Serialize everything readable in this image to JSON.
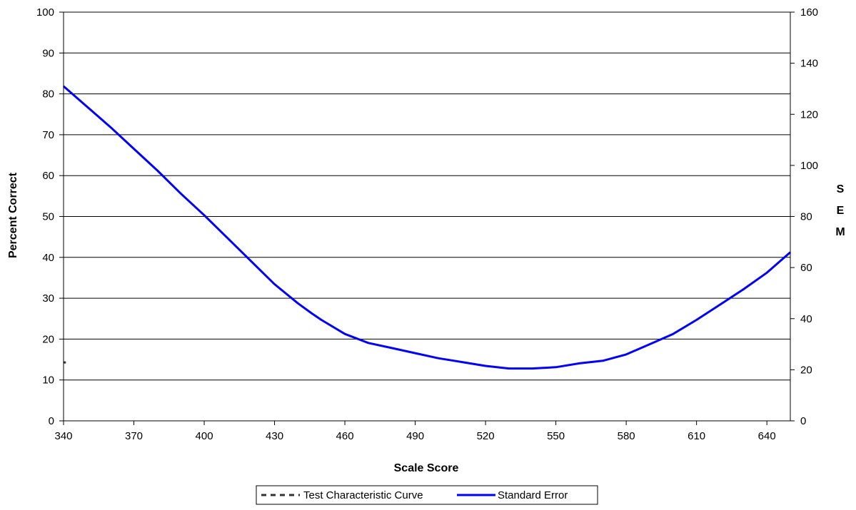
{
  "chart_data": {
    "type": "line",
    "title": "",
    "xlabel": "Scale Score",
    "ylabel": "Percent Correct",
    "y2label": "SEM",
    "y2label_letters": [
      "S",
      "E",
      "M"
    ],
    "xlim": [
      340,
      650
    ],
    "ylim": [
      0,
      100
    ],
    "y2lim": [
      0,
      160
    ],
    "x_ticks": [
      340,
      370,
      400,
      430,
      460,
      490,
      520,
      550,
      580,
      610,
      640
    ],
    "y_ticks": [
      0,
      10,
      20,
      30,
      40,
      50,
      60,
      70,
      80,
      90,
      100
    ],
    "y2_ticks": [
      0,
      20,
      40,
      60,
      80,
      100,
      120,
      140,
      160
    ],
    "grid": "horizontal",
    "legend_position": "bottom",
    "series": [
      {
        "name": "Test Characteristic Curve",
        "axis": "left",
        "style": "dashed",
        "color": "#333333",
        "points": [
          [
            340,
            14.3
          ],
          [
            341,
            14.3
          ]
        ]
      },
      {
        "name": "Standard Error",
        "axis": "right",
        "style": "solid",
        "color": "#0000ff",
        "points": [
          [
            340,
            131
          ],
          [
            350,
            123
          ],
          [
            360,
            115
          ],
          [
            370,
            106.5
          ],
          [
            380,
            98
          ],
          [
            390,
            89
          ],
          [
            400,
            80.5
          ],
          [
            410,
            71.5
          ],
          [
            420,
            62.5
          ],
          [
            430,
            53.5
          ],
          [
            440,
            46
          ],
          [
            446,
            42
          ],
          [
            450,
            39.5
          ],
          [
            460,
            34
          ],
          [
            470,
            30.5
          ],
          [
            480,
            28.5
          ],
          [
            490,
            26.5
          ],
          [
            500,
            24.5
          ],
          [
            510,
            23
          ],
          [
            520,
            21.5
          ],
          [
            530,
            20.5
          ],
          [
            540,
            20.5
          ],
          [
            550,
            21
          ],
          [
            560,
            22.5
          ],
          [
            570,
            23.5
          ],
          [
            580,
            26
          ],
          [
            590,
            30
          ],
          [
            600,
            34
          ],
          [
            610,
            39.5
          ],
          [
            620,
            45.5
          ],
          [
            630,
            51.5
          ],
          [
            640,
            58
          ],
          [
            650,
            66
          ]
        ]
      }
    ]
  },
  "legend": {
    "items": [
      {
        "label": "Test Characteristic Curve",
        "style": "dashed",
        "color": "#333333"
      },
      {
        "label": "Standard Error",
        "style": "solid",
        "color": "#0000ff"
      }
    ]
  }
}
